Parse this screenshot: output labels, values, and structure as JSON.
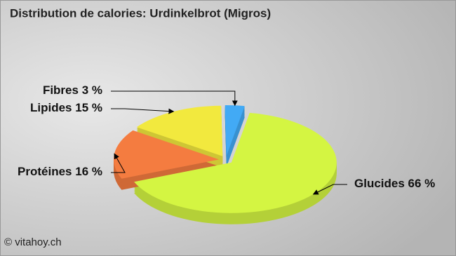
{
  "chart_data": {
    "type": "pie",
    "title": "Distribution de calories: Urdinkelbrot (Migros)",
    "source": "© vitahoy.ch",
    "categories": [
      "Glucides",
      "Protéines",
      "Lipides",
      "Fibres"
    ],
    "values": [
      66,
      16,
      15,
      3
    ],
    "value_labels": [
      "66 %",
      "16 %",
      "15 %",
      "3 %"
    ],
    "colors": [
      "#d4f542",
      "#f47c40",
      "#f2e93e",
      "#42aaf5"
    ]
  }
}
